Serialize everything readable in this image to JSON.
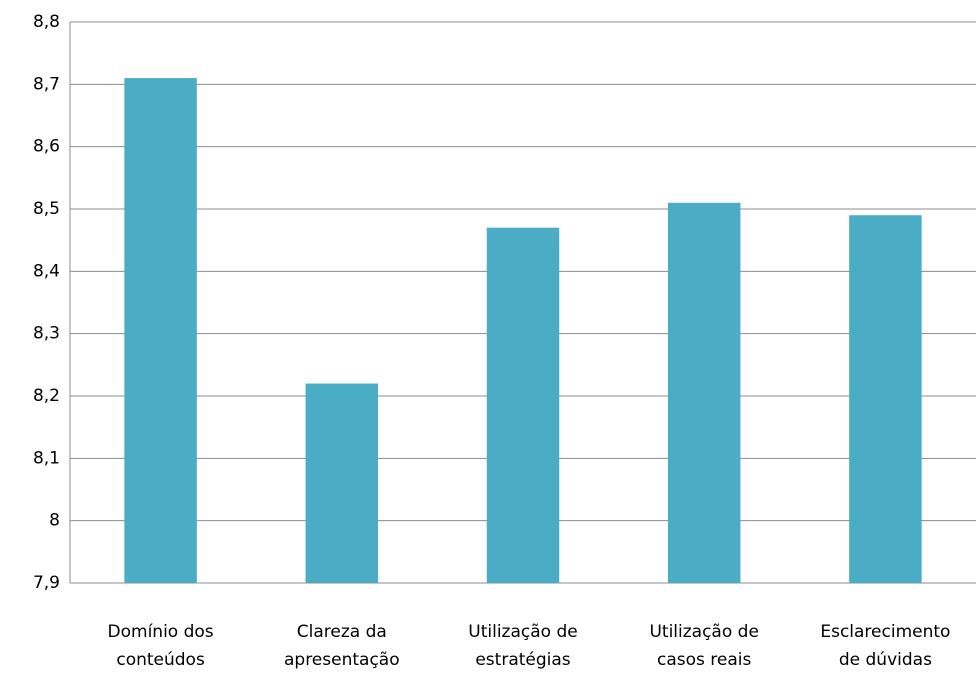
{
  "chart_data": {
    "type": "bar",
    "categories": [
      [
        "Domínio dos",
        "conteúdos"
      ],
      [
        "Clareza da",
        "apresentação"
      ],
      [
        "Utilização de",
        "estratégias"
      ],
      [
        "Utilização de",
        "casos reais"
      ],
      [
        "Esclarecimento",
        "de dúvidas"
      ]
    ],
    "values": [
      8.71,
      8.22,
      8.47,
      8.51,
      8.49
    ],
    "color": "#4bacc6",
    "ylim": [
      7.9,
      8.8
    ],
    "yticks": [
      {
        "value": 7.9,
        "label": "7,9"
      },
      8,
      {
        "value": 8.1,
        "label": "8,1"
      },
      {
        "value": 8.2,
        "label": "8,2"
      },
      {
        "value": 8.3,
        "label": "8,3"
      },
      {
        "value": 8.4,
        "label": "8,4"
      },
      {
        "value": 8.5,
        "label": "8,5"
      },
      {
        "value": 8.6,
        "label": "8,6"
      },
      {
        "value": 8.7,
        "label": "8,7"
      },
      {
        "value": 8.8,
        "label": "8,8"
      }
    ],
    "grid": true
  }
}
